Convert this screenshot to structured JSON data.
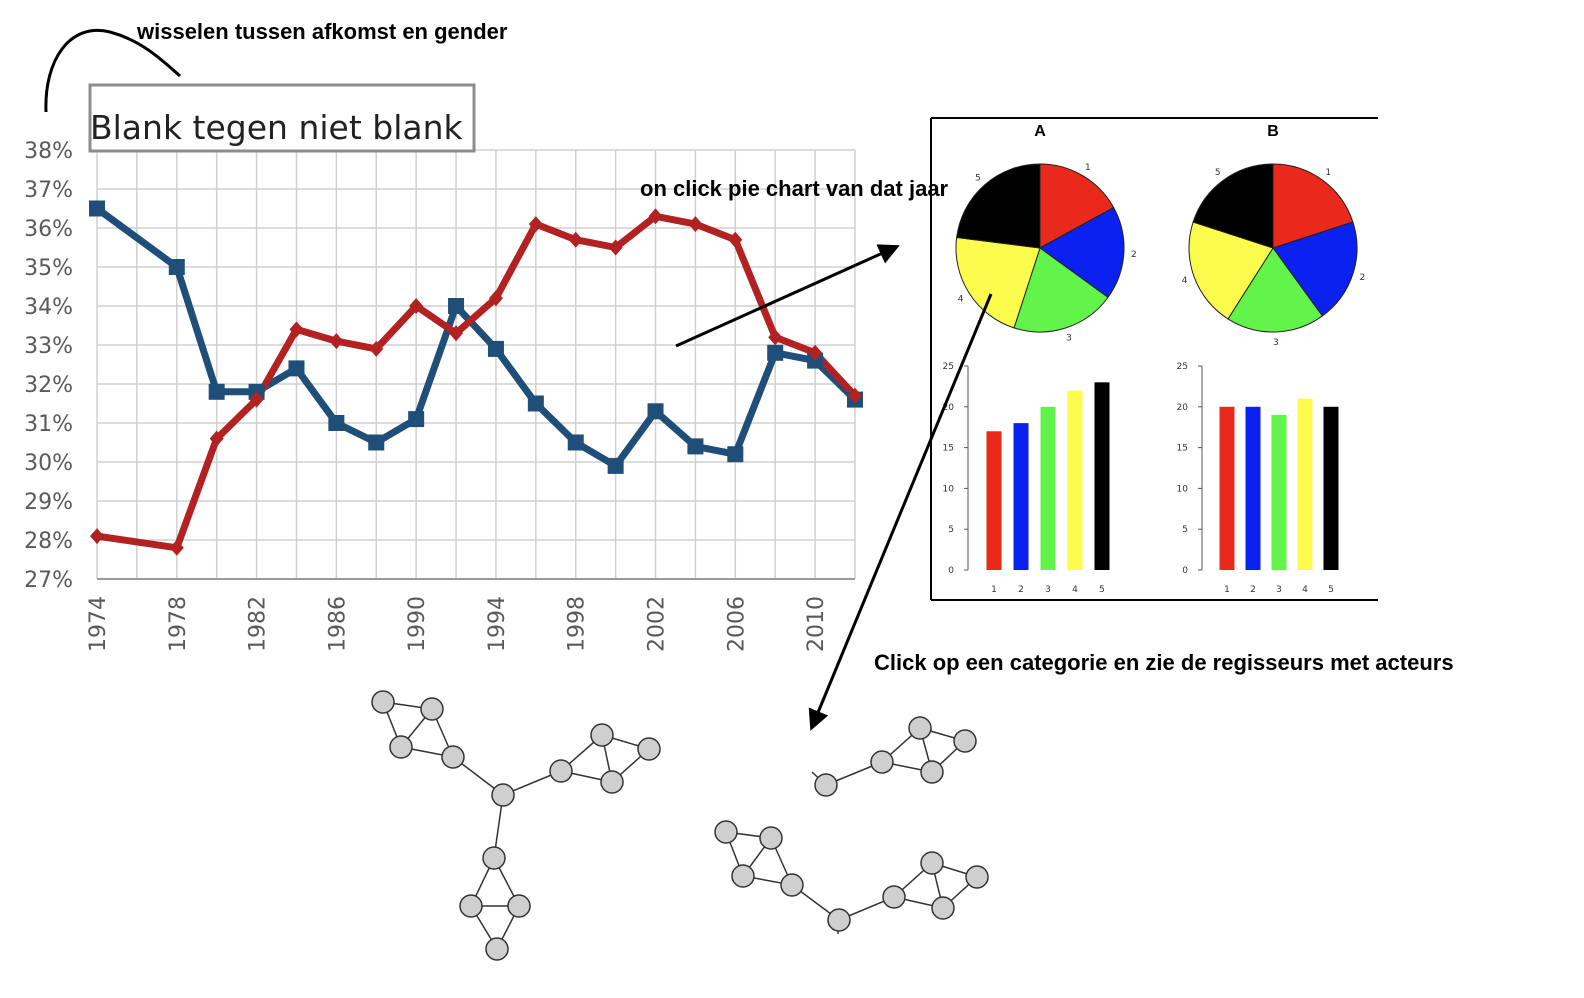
{
  "annotations": {
    "toggle_note": "wisselen tussen afkomst en gender",
    "pie_click_note": "on click pie chart van dat jaar",
    "category_click_note": "Click op een categorie en zie de regisseurs met acteurs"
  },
  "toggle_box": {
    "label": "Blank tegen niet blank"
  },
  "colors": {
    "blue_series": "#1f4e79",
    "red_series": "#b22222",
    "grid": "#d0d0d0",
    "node_fill": "#cfcfcf",
    "cat_1": "#e8291c",
    "cat_2": "#0a21f0",
    "cat_3": "#62f44a",
    "cat_4": "#fcfc4c",
    "cat_5": "#000000"
  },
  "chart_data": [
    {
      "type": "line",
      "title": "",
      "xlabel": "",
      "ylabel": "",
      "ylim": [
        27,
        38
      ],
      "yticks": [
        "27%",
        "28%",
        "29%",
        "30%",
        "31%",
        "32%",
        "33%",
        "34%",
        "35%",
        "36%",
        "37%",
        "38%"
      ],
      "xtick_labels": [
        "1974",
        "1978",
        "1982",
        "1986",
        "1990",
        "1994",
        "1998",
        "2002",
        "2006",
        "2010"
      ],
      "xlim": [
        1974,
        2012
      ],
      "grid": true,
      "series": [
        {
          "color": "#1f4e79",
          "marker": "square",
          "points": [
            [
              1974,
              36.5
            ],
            [
              1978,
              35.0
            ],
            [
              1980,
              31.8
            ],
            [
              1982,
              31.8
            ],
            [
              1984,
              32.4
            ],
            [
              1986,
              31.0
            ],
            [
              1988,
              30.5
            ],
            [
              1990,
              31.1
            ],
            [
              1992,
              34.0
            ],
            [
              1994,
              32.9
            ],
            [
              1996,
              31.5
            ],
            [
              1998,
              30.5
            ],
            [
              2000,
              29.9
            ],
            [
              2002,
              31.3
            ],
            [
              2004,
              30.4
            ],
            [
              2006,
              30.2
            ],
            [
              2008,
              32.8
            ],
            [
              2010,
              32.6
            ],
            [
              2012,
              31.6
            ]
          ]
        },
        {
          "color": "#b22222",
          "marker": "diamond",
          "points": [
            [
              1974,
              28.1
            ],
            [
              1978,
              27.8
            ],
            [
              1980,
              30.6
            ],
            [
              1982,
              31.6
            ],
            [
              1984,
              33.4
            ],
            [
              1986,
              33.1
            ],
            [
              1988,
              32.9
            ],
            [
              1990,
              34.0
            ],
            [
              1992,
              33.3
            ],
            [
              1994,
              34.2
            ],
            [
              1996,
              36.1
            ],
            [
              1998,
              35.7
            ],
            [
              2000,
              35.5
            ],
            [
              2002,
              36.3
            ],
            [
              2004,
              36.1
            ],
            [
              2006,
              35.7
            ],
            [
              2008,
              33.2
            ],
            [
              2010,
              32.8
            ],
            [
              2012,
              31.7
            ]
          ]
        }
      ]
    },
    {
      "type": "pie",
      "title": "A",
      "categories": [
        "1",
        "2",
        "3",
        "4",
        "5"
      ],
      "values": [
        17,
        18,
        20,
        22,
        23
      ]
    },
    {
      "type": "pie",
      "title": "B",
      "categories": [
        "1",
        "2",
        "3",
        "4",
        "5"
      ],
      "values": [
        20,
        20,
        19,
        21,
        20
      ]
    },
    {
      "type": "bar",
      "title": "",
      "categories": [
        "1",
        "2",
        "3",
        "4",
        "5"
      ],
      "values": [
        17,
        18,
        20,
        22,
        23
      ],
      "ylim": [
        0,
        25
      ],
      "yticks": [
        "0",
        "5",
        "10",
        "15",
        "20",
        "25"
      ]
    },
    {
      "type": "bar",
      "title": "",
      "categories": [
        "1",
        "2",
        "3",
        "4",
        "5"
      ],
      "values": [
        20,
        20,
        19,
        21,
        20
      ],
      "ylim": [
        0,
        25
      ],
      "yticks": [
        "0",
        "5",
        "10",
        "15",
        "20",
        "25"
      ]
    }
  ]
}
